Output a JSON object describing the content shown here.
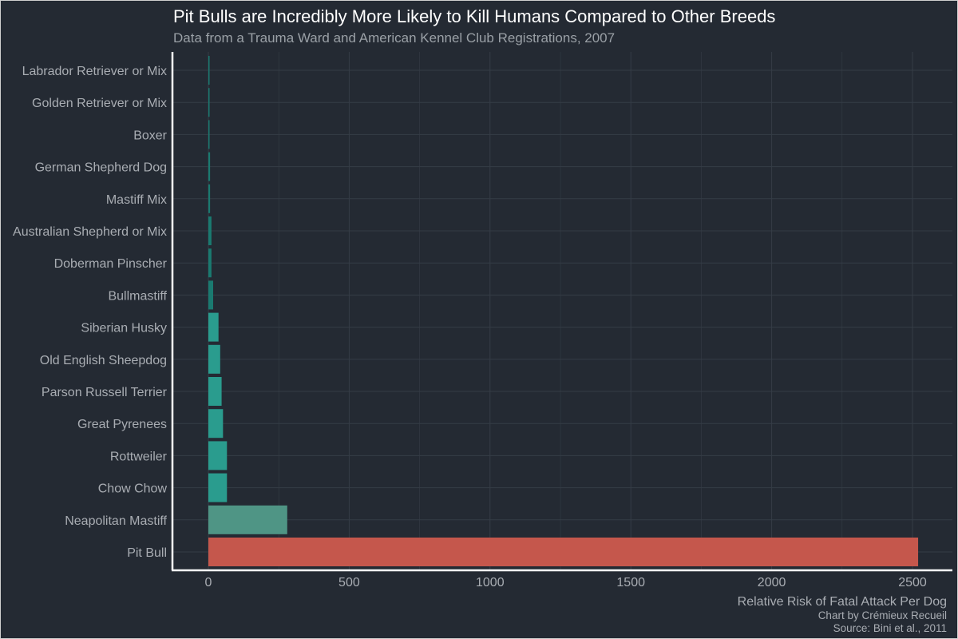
{
  "chart_data": {
    "type": "bar",
    "orientation": "horizontal",
    "title": "Pit Bulls are Incredibly More Likely to Kill Humans Compared to Other Breeds",
    "subtitle": "Data from a Trauma Ward and American Kennel Club Registrations, 2007",
    "xlabel": "Relative Risk of Fatal Attack Per Dog",
    "ylabel": "",
    "caption_lines": [
      "Chart by Crémieux Recueil",
      "Source: Bini et al., 2011"
    ],
    "xlim": [
      -125,
      2600
    ],
    "xticks": [
      0,
      500,
      1000,
      1500,
      2000,
      2500
    ],
    "grid": true,
    "legend": "none",
    "categories": [
      "Labrador Retriever or Mix",
      "Golden Retriever or Mix",
      "Boxer",
      "German Shepherd Dog",
      "Mastiff Mix",
      "Australian Shepherd or Mix",
      "Doberman Pinscher",
      "Bullmastiff",
      "Siberian Husky",
      "Old English Sheepdog",
      "Parson Russell Terrier",
      "Great Pyrenees",
      "Rottweiler",
      "Chow Chow",
      "Neapolitan Mastiff",
      "Pit Bull"
    ],
    "values": [
      1,
      2,
      3,
      6,
      6,
      11,
      11,
      17,
      36,
      42,
      47,
      52,
      66,
      66,
      280,
      2520
    ],
    "colors": {
      "background": "#242a33",
      "grid": "#353c46",
      "axis_line": "#ffffff",
      "tick_label": "#a9adb3",
      "title": "#ffffff",
      "subtitle": "#9aa0a6",
      "bar_low": "#1a7a70",
      "bar_mid": "#2a9c8e",
      "bar_neapolitan": "#4f9585",
      "bar_pitbull": "#c5574c"
    }
  }
}
